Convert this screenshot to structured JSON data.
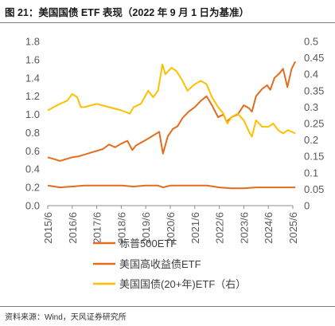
{
  "header": {
    "title": "图 21：美国国债 ETF 表现（2022 年 9 月 1 日为基准）"
  },
  "footer": {
    "source": "资料来源：Wind，天风证券研究所"
  },
  "chart_data": {
    "type": "line",
    "x_ticks": [
      "2015/6",
      "2016/6",
      "2017/6",
      "2018/6",
      "2019/6",
      "2020/6",
      "2021/6",
      "2022/6",
      "2023/6",
      "2024/6",
      "2025/6"
    ],
    "y_left": {
      "ticks": [
        "0.0",
        "0.2",
        "0.4",
        "0.6",
        "0.8",
        "1.0",
        "1.2",
        "1.4",
        "1.6",
        "1.8"
      ],
      "range": [
        0,
        1.8
      ]
    },
    "y_right": {
      "ticks": [
        "0",
        "0.05",
        "0.1",
        "0.15",
        "0.2",
        "0.25",
        "0.3",
        "0.35",
        "0.4",
        "0.45",
        "0.5"
      ],
      "range": [
        0,
        0.5
      ]
    },
    "grid": false,
    "legend_position": "bottom",
    "series": [
      {
        "name": "标普500ETF",
        "axis": "left",
        "color": "#e36c1d",
        "points": [
          [
            2015.5,
            0.53
          ],
          [
            2015.75,
            0.51
          ],
          [
            2016.0,
            0.49
          ],
          [
            2016.25,
            0.51
          ],
          [
            2016.5,
            0.53
          ],
          [
            2016.75,
            0.54
          ],
          [
            2017.0,
            0.56
          ],
          [
            2017.25,
            0.58
          ],
          [
            2017.5,
            0.6
          ],
          [
            2017.75,
            0.62
          ],
          [
            2018.0,
            0.67
          ],
          [
            2018.25,
            0.64
          ],
          [
            2018.5,
            0.68
          ],
          [
            2018.75,
            0.71
          ],
          [
            2018.95,
            0.61
          ],
          [
            2019.1,
            0.66
          ],
          [
            2019.5,
            0.72
          ],
          [
            2019.75,
            0.76
          ],
          [
            2020.05,
            0.81
          ],
          [
            2020.2,
            0.57
          ],
          [
            2020.4,
            0.76
          ],
          [
            2020.6,
            0.84
          ],
          [
            2020.8,
            0.87
          ],
          [
            2021.0,
            0.96
          ],
          [
            2021.25,
            1.03
          ],
          [
            2021.5,
            1.08
          ],
          [
            2021.75,
            1.15
          ],
          [
            2021.98,
            1.2
          ],
          [
            2022.2,
            1.1
          ],
          [
            2022.45,
            0.97
          ],
          [
            2022.67,
            1.0
          ],
          [
            2022.8,
            0.92
          ],
          [
            2023.0,
            0.97
          ],
          [
            2023.25,
            1.0
          ],
          [
            2023.5,
            1.1
          ],
          [
            2023.7,
            1.07
          ],
          [
            2023.83,
            1.03
          ],
          [
            2024.0,
            1.2
          ],
          [
            2024.25,
            1.28
          ],
          [
            2024.45,
            1.32
          ],
          [
            2024.58,
            1.27
          ],
          [
            2024.75,
            1.4
          ],
          [
            2024.95,
            1.45
          ],
          [
            2025.1,
            1.5
          ],
          [
            2025.28,
            1.3
          ],
          [
            2025.45,
            1.5
          ],
          [
            2025.6,
            1.58
          ]
        ]
      },
      {
        "name": "美国高收益债ETF",
        "axis": "left",
        "color": "#e36c1d",
        "points": [
          [
            2015.5,
            0.22
          ],
          [
            2016.0,
            0.2
          ],
          [
            2016.5,
            0.21
          ],
          [
            2017.0,
            0.22
          ],
          [
            2017.5,
            0.22
          ],
          [
            2018.0,
            0.22
          ],
          [
            2018.5,
            0.22
          ],
          [
            2019.0,
            0.21
          ],
          [
            2019.5,
            0.22
          ],
          [
            2020.0,
            0.22
          ],
          [
            2020.2,
            0.2
          ],
          [
            2020.5,
            0.22
          ],
          [
            2021.0,
            0.22
          ],
          [
            2021.5,
            0.22
          ],
          [
            2022.0,
            0.22
          ],
          [
            2022.5,
            0.2
          ],
          [
            2023.0,
            0.19
          ],
          [
            2023.5,
            0.19
          ],
          [
            2024.0,
            0.2
          ],
          [
            2024.5,
            0.2
          ],
          [
            2025.0,
            0.2
          ],
          [
            2025.6,
            0.2
          ]
        ]
      },
      {
        "name": "美国国债(20+年)ETF（右）",
        "axis": "right",
        "color": "#ffc000",
        "points": [
          [
            2015.5,
            0.29
          ],
          [
            2015.75,
            0.3
          ],
          [
            2016.0,
            0.31
          ],
          [
            2016.3,
            0.32
          ],
          [
            2016.5,
            0.34
          ],
          [
            2016.7,
            0.33
          ],
          [
            2016.85,
            0.3
          ],
          [
            2017.0,
            0.3
          ],
          [
            2017.5,
            0.31
          ],
          [
            2018.0,
            0.3
          ],
          [
            2018.5,
            0.29
          ],
          [
            2018.85,
            0.28
          ],
          [
            2019.0,
            0.3
          ],
          [
            2019.3,
            0.31
          ],
          [
            2019.6,
            0.35
          ],
          [
            2019.8,
            0.33
          ],
          [
            2020.0,
            0.35
          ],
          [
            2020.18,
            0.43
          ],
          [
            2020.3,
            0.4
          ],
          [
            2020.55,
            0.42
          ],
          [
            2020.75,
            0.41
          ],
          [
            2021.0,
            0.38
          ],
          [
            2021.2,
            0.35
          ],
          [
            2021.5,
            0.37
          ],
          [
            2021.75,
            0.38
          ],
          [
            2021.98,
            0.37
          ],
          [
            2022.2,
            0.33
          ],
          [
            2022.45,
            0.3
          ],
          [
            2022.67,
            0.28
          ],
          [
            2022.83,
            0.25
          ],
          [
            2023.0,
            0.27
          ],
          [
            2023.25,
            0.28
          ],
          [
            2023.5,
            0.26
          ],
          [
            2023.75,
            0.22
          ],
          [
            2023.83,
            0.21
          ],
          [
            2024.0,
            0.26
          ],
          [
            2024.25,
            0.24
          ],
          [
            2024.5,
            0.24
          ],
          [
            2024.7,
            0.25
          ],
          [
            2024.9,
            0.23
          ],
          [
            2025.1,
            0.22
          ],
          [
            2025.3,
            0.23
          ],
          [
            2025.6,
            0.22
          ]
        ]
      }
    ]
  }
}
